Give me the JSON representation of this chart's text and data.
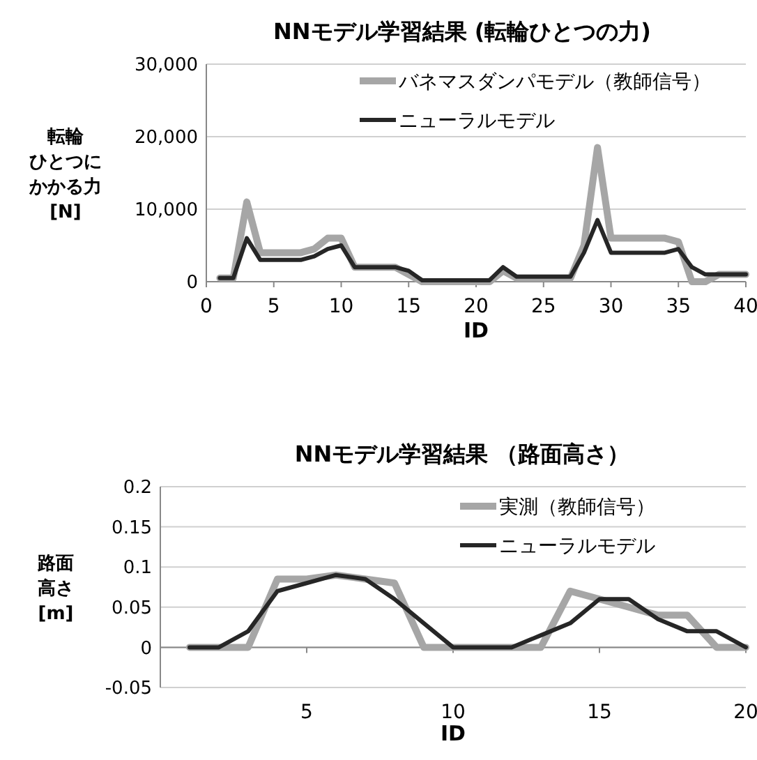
{
  "chart_data": [
    {
      "type": "line",
      "title": "NNモデル学習結果 (転輪ひとつの力)",
      "xlabel": "ID",
      "ylabel": "転輪ひとつにかかる力[N]",
      "x": [
        1,
        2,
        3,
        4,
        5,
        6,
        7,
        8,
        9,
        10,
        11,
        12,
        13,
        14,
        15,
        16,
        17,
        18,
        19,
        20,
        21,
        22,
        23,
        24,
        25,
        26,
        27,
        28,
        29,
        30,
        31,
        32,
        33,
        34,
        35,
        36,
        37,
        38,
        39,
        40
      ],
      "series": [
        {
          "name": "バネマスダンパモデル（教師信号）",
          "color": "#a6a6a6",
          "values": [
            500,
            500,
            11000,
            4000,
            4000,
            4000,
            4000,
            4500,
            6000,
            6000,
            2000,
            2000,
            2000,
            2000,
            1000,
            0,
            0,
            0,
            0,
            0,
            0,
            1500,
            500,
            500,
            500,
            500,
            500,
            5000,
            18500,
            6000,
            6000,
            6000,
            6000,
            6000,
            5500,
            0,
            0,
            1000,
            1000,
            1000
          ]
        },
        {
          "name": "ニューラルモデル",
          "color": "#262626",
          "values": [
            500,
            500,
            6000,
            3000,
            3000,
            3000,
            3000,
            3500,
            4500,
            5000,
            2000,
            2000,
            2000,
            2000,
            1500,
            200,
            200,
            200,
            200,
            200,
            200,
            2000,
            700,
            700,
            700,
            700,
            700,
            4000,
            8500,
            4000,
            4000,
            4000,
            4000,
            4000,
            4500,
            2000,
            1000,
            1000,
            1000,
            1000
          ]
        }
      ],
      "xlim": [
        0,
        40
      ],
      "xticks": [
        0,
        5,
        10,
        15,
        20,
        25,
        30,
        35,
        40
      ],
      "ylim": [
        0,
        30000
      ],
      "yticks": [
        0,
        {
          "value": 10000,
          "label": "10,000"
        },
        {
          "value": 20000,
          "label": "20,000"
        },
        {
          "value": 30000,
          "label": "30,000"
        }
      ],
      "grid": "y",
      "legend": "top right",
      "marker": "none",
      "line_style": "solid"
    },
    {
      "type": "line",
      "title": "NNモデル学習結果 （路面高さ）",
      "xlabel": "ID",
      "ylabel": "路面高さ[m]",
      "x": [
        1,
        2,
        3,
        4,
        5,
        6,
        7,
        8,
        9,
        10,
        11,
        12,
        13,
        14,
        15,
        16,
        17,
        18,
        19,
        20
      ],
      "series": [
        {
          "name": "実測（教師信号）",
          "color": "#a6a6a6",
          "values": [
            0,
            0,
            0,
            0.085,
            0.085,
            0.09,
            0.085,
            0.08,
            0,
            0,
            0,
            0,
            0,
            0.07,
            0.06,
            0.05,
            0.04,
            0.04,
            0,
            0
          ]
        },
        {
          "name": "ニューラルモデル",
          "color": "#262626",
          "values": [
            0,
            0,
            0.02,
            0.07,
            0.08,
            0.09,
            0.085,
            0.06,
            0.03,
            0,
            0,
            0,
            0.015,
            0.03,
            0.06,
            0.06,
            0.035,
            0.02,
            0.02,
            0
          ]
        }
      ],
      "xlim": [
        0,
        20
      ],
      "xticks": [
        5,
        10,
        15,
        20
      ],
      "ylim": [
        -0.05,
        0.2
      ],
      "yticks": [
        -0.05,
        0,
        0.05,
        0.1,
        0.15,
        0.2
      ],
      "grid": "y",
      "legend": "top right",
      "marker": "none",
      "line_style": "solid"
    }
  ]
}
